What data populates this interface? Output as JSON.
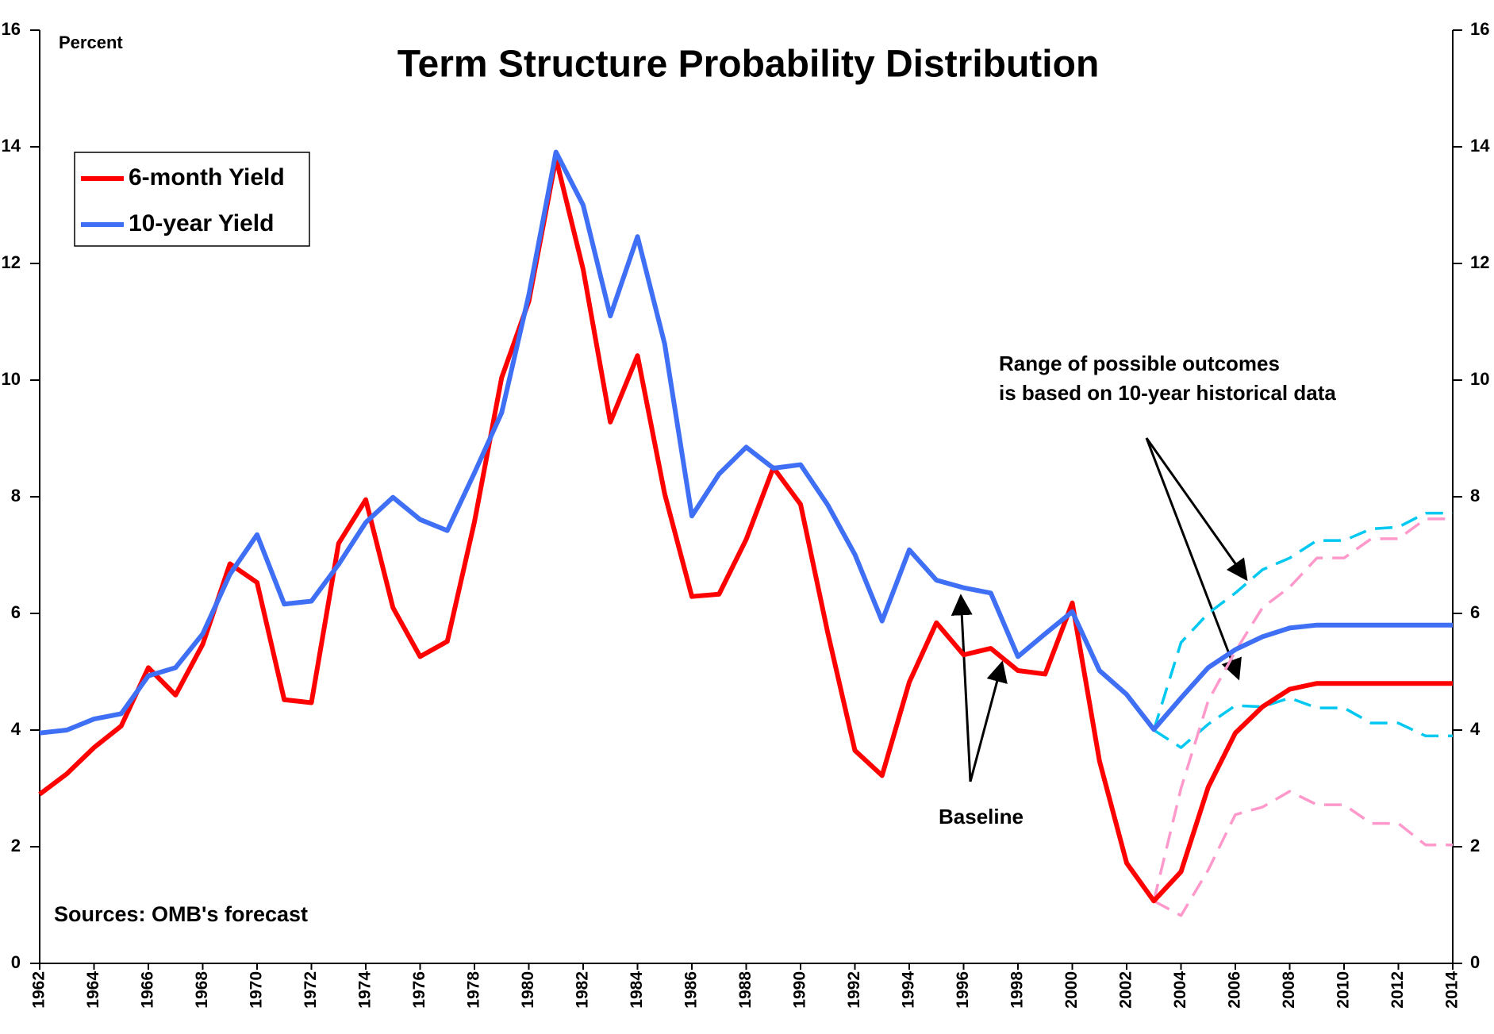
{
  "chart_data": {
    "type": "line",
    "title": "Term Structure Probability Distribution",
    "y_label": "Percent",
    "annotations": [
      "Range of possible outcomes",
      "is based on 10-year historical data",
      "Baseline",
      "Sources:  OMB's forecast"
    ],
    "x": [
      1962,
      1963,
      1964,
      1965,
      1966,
      1967,
      1968,
      1969,
      1970,
      1971,
      1972,
      1973,
      1974,
      1975,
      1976,
      1977,
      1978,
      1979,
      1980,
      1981,
      1982,
      1983,
      1984,
      1985,
      1986,
      1987,
      1988,
      1989,
      1990,
      1991,
      1992,
      1993,
      1994,
      1995,
      1996,
      1997,
      1998,
      1999,
      2000,
      2001,
      2002,
      2003,
      2004,
      2005,
      2006,
      2007,
      2008,
      2009,
      2010,
      2011,
      2012,
      2013,
      2014
    ],
    "series": [
      {
        "name": "6-month Yield",
        "color": "#ff0000",
        "values": [
          2.9,
          3.25,
          3.7,
          4.07,
          5.07,
          4.6,
          5.47,
          6.85,
          6.53,
          4.52,
          4.47,
          7.2,
          7.95,
          6.1,
          5.26,
          5.52,
          7.57,
          10.04,
          11.35,
          13.8,
          11.9,
          9.28,
          10.42,
          8.05,
          6.29,
          6.33,
          7.27,
          8.5,
          7.87,
          5.67,
          3.65,
          3.22,
          4.82,
          5.84,
          5.29,
          5.4,
          5.02,
          4.96,
          6.18,
          3.47,
          1.72,
          1.07,
          1.57,
          3.02,
          3.95,
          4.4,
          4.7,
          4.8,
          4.8,
          4.8,
          4.8,
          4.8,
          4.8
        ]
      },
      {
        "name": "10-year Yield",
        "color": "#3f6ff5",
        "values": [
          3.95,
          4.0,
          4.19,
          4.28,
          4.93,
          5.07,
          5.65,
          6.67,
          7.35,
          6.16,
          6.21,
          6.84,
          7.56,
          7.99,
          7.61,
          7.42,
          8.41,
          9.44,
          11.46,
          13.91,
          13.0,
          11.1,
          12.46,
          10.62,
          7.67,
          8.39,
          8.85,
          8.49,
          8.55,
          7.86,
          7.01,
          5.87,
          7.09,
          6.57,
          6.44,
          6.35,
          5.26,
          5.65,
          6.03,
          5.02,
          4.61,
          4.01,
          4.55,
          5.07,
          5.38,
          5.6,
          5.75,
          5.8,
          5.8,
          5.8,
          5.8,
          5.8,
          5.8
        ]
      }
    ],
    "bands": [
      {
        "color": "#00c8f0",
        "values": [
          null,
          null,
          null,
          null,
          null,
          null,
          null,
          null,
          null,
          null,
          null,
          null,
          null,
          null,
          null,
          null,
          null,
          null,
          null,
          null,
          null,
          null,
          null,
          null,
          null,
          null,
          null,
          null,
          null,
          null,
          null,
          null,
          null,
          null,
          null,
          null,
          null,
          null,
          null,
          null,
          null,
          4.0,
          5.5,
          6.0,
          6.35,
          6.75,
          6.95,
          7.25,
          7.25,
          7.45,
          7.48,
          7.72,
          7.72
        ]
      },
      {
        "color": "#00c8f0",
        "values": [
          null,
          null,
          null,
          null,
          null,
          null,
          null,
          null,
          null,
          null,
          null,
          null,
          null,
          null,
          null,
          null,
          null,
          null,
          null,
          null,
          null,
          null,
          null,
          null,
          null,
          null,
          null,
          null,
          null,
          null,
          null,
          null,
          null,
          null,
          null,
          null,
          null,
          null,
          null,
          null,
          null,
          4.0,
          3.7,
          4.1,
          4.42,
          4.4,
          4.55,
          4.38,
          4.38,
          4.12,
          4.12,
          3.9,
          3.9
        ]
      },
      {
        "color": "#ff99cc",
        "values": [
          null,
          null,
          null,
          null,
          null,
          null,
          null,
          null,
          null,
          null,
          null,
          null,
          null,
          null,
          null,
          null,
          null,
          null,
          null,
          null,
          null,
          null,
          null,
          null,
          null,
          null,
          null,
          null,
          null,
          null,
          null,
          null,
          null,
          null,
          null,
          null,
          null,
          null,
          null,
          null,
          null,
          1.07,
          3.0,
          4.5,
          5.35,
          6.1,
          6.45,
          6.95,
          6.95,
          7.28,
          7.28,
          7.62,
          7.62
        ]
      },
      {
        "color": "#ff99cc",
        "values": [
          null,
          null,
          null,
          null,
          null,
          null,
          null,
          null,
          null,
          null,
          null,
          null,
          null,
          null,
          null,
          null,
          null,
          null,
          null,
          null,
          null,
          null,
          null,
          null,
          null,
          null,
          null,
          null,
          null,
          null,
          null,
          null,
          null,
          null,
          null,
          null,
          null,
          null,
          null,
          null,
          null,
          1.07,
          0.82,
          1.6,
          2.55,
          2.68,
          2.95,
          2.72,
          2.72,
          2.4,
          2.4,
          2.03,
          2.03
        ]
      }
    ],
    "xlim": [
      1962,
      2014
    ],
    "xticks": [
      1962,
      1964,
      1966,
      1968,
      1970,
      1972,
      1974,
      1976,
      1978,
      1980,
      1982,
      1984,
      1986,
      1988,
      1990,
      1992,
      1994,
      1996,
      1998,
      2000,
      2002,
      2004,
      2006,
      2008,
      2010,
      2012,
      2014
    ],
    "ylim": [
      0,
      16
    ],
    "yticks": [
      0,
      2,
      4,
      6,
      8,
      10,
      12,
      14,
      16
    ],
    "y2lim": [
      0,
      16
    ],
    "y2ticks": [
      0,
      2,
      4,
      6,
      8,
      10,
      12,
      14,
      16
    ],
    "grid": false
  }
}
